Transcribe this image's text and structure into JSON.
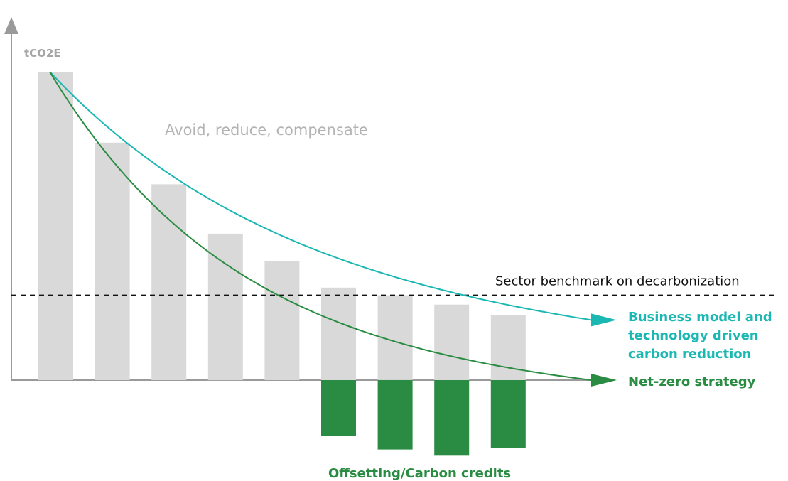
{
  "chart_data": {
    "type": "bar",
    "ylabel": "tCO2E",
    "grid": false,
    "legend": "none",
    "categories": [
      "",
      "",
      "",
      "",
      "",
      "",
      "",
      "",
      ""
    ],
    "ylim": [
      -125,
      525
    ],
    "series": [
      {
        "name": "",
        "color": "#d9d9d9",
        "values": [
          100,
          77,
          63.5,
          47.5,
          38.5,
          30,
          27.5,
          24.5,
          21
        ]
      },
      {
        "name": "Offsetting/Carbon credits",
        "color": "#2a8c42",
        "values": [
          0,
          0,
          0,
          0,
          0,
          -18,
          -22.5,
          -24.5,
          -22
        ]
      }
    ],
    "benchmark": {
      "label": "Sector benchmark on decarbonization",
      "value": 27.5,
      "style": "dashed",
      "color": "#111111"
    },
    "curves": [
      {
        "name": "Business model and technology driven carbon reduction",
        "label_lines": [
          "Business model and",
          "technology driven",
          "carbon reduction"
        ],
        "color": "#1bb7b3",
        "start": 100,
        "end": 19.5,
        "decay": 0.45
      },
      {
        "name": "Net-zero strategy",
        "label_lines": [
          "Net-zero strategy"
        ],
        "color": "#2a8c42",
        "start": 100,
        "end": 0,
        "decay": 0.35
      }
    ],
    "annotations": {
      "top": "Avoid, reduce, compensate",
      "bottom": "Offsetting/Carbon credits"
    }
  }
}
